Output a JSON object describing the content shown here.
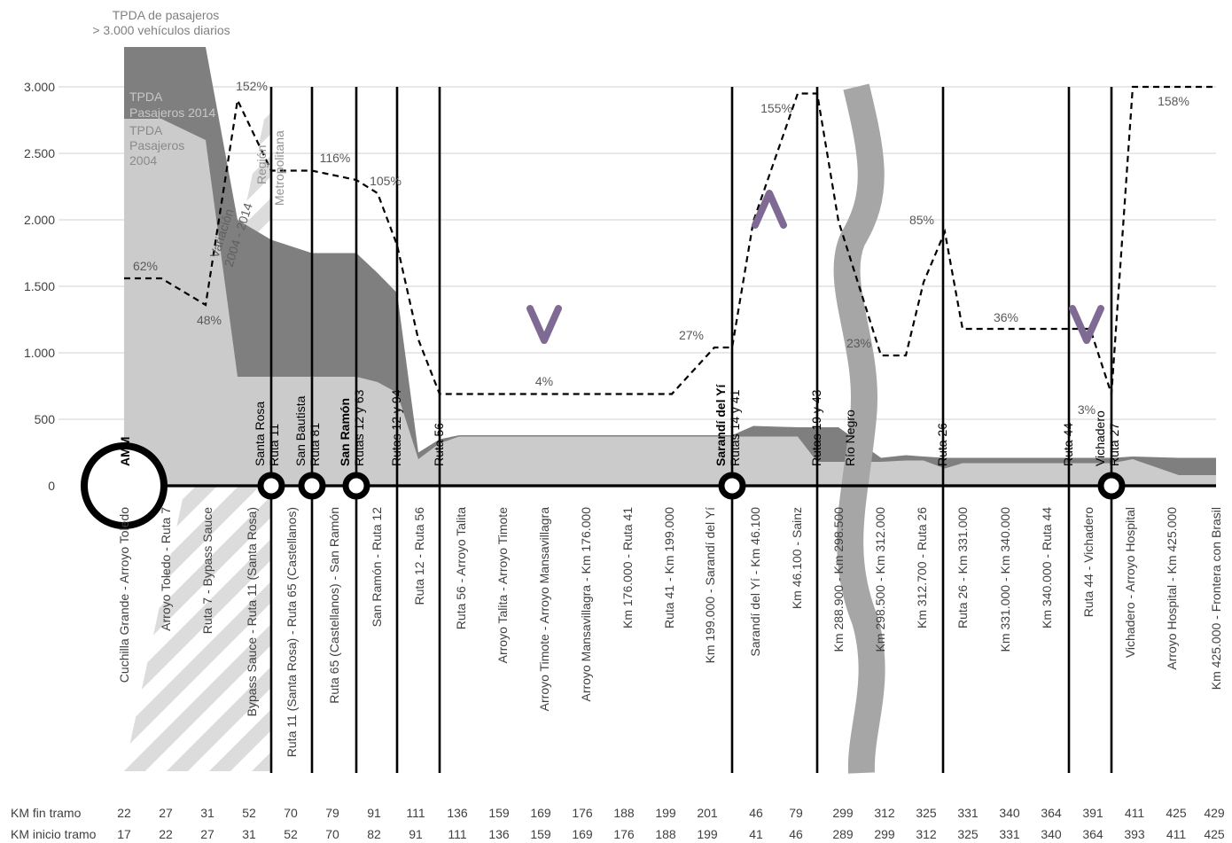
{
  "chart_data": {
    "type": "area",
    "y_axis": {
      "ticks": [
        0,
        500,
        1000,
        1500,
        2000,
        2500,
        3000
      ],
      "tick_labels": [
        "0",
        "500",
        "1.000",
        "1.500",
        "2.000",
        "2.500",
        "3.000"
      ],
      "ylim": [
        0,
        3300
      ],
      "grid": true
    },
    "top_note": [
      "TPDA de pasajeros",
      "> 3.000 vehículos diarios"
    ],
    "series": [
      {
        "name": "TPDA Pasajeros 2014",
        "label_lines": [
          "TPDA",
          "Pasajeros 2014"
        ],
        "color": "#7f7f7f",
        "values": [
          3300,
          3300,
          3300,
          2000,
          1850,
          1750,
          1750,
          1600,
          1450,
          250,
          350,
          380,
          380,
          380,
          380,
          380,
          380,
          450,
          440,
          440,
          440,
          210,
          230,
          220,
          210,
          210,
          210,
          210,
          210,
          220,
          210,
          210
        ]
      },
      {
        "name": "TPDA Pasajeros 2004",
        "label_lines": [
          "TPDA",
          "Pasajeros",
          "2004"
        ],
        "color": "#cbcbcb",
        "values": [
          2760,
          2760,
          2600,
          820,
          820,
          820,
          820,
          780,
          700,
          200,
          320,
          370,
          370,
          370,
          370,
          370,
          370,
          370,
          370,
          180,
          180,
          180,
          190,
          190,
          130,
          170,
          170,
          170,
          170,
          200,
          80,
          80
        ]
      }
    ],
    "variation": {
      "name": "Variación 2004 - 2014",
      "label_lines": [
        "Variación",
        "2004 - 2014"
      ],
      "values": [
        1560,
        1560,
        1360,
        2900,
        2370,
        2370,
        2300,
        2200,
        1810,
        1100,
        690,
        690,
        690,
        690,
        690,
        1040,
        1040,
        1990,
        2950,
        2950,
        1990,
        980,
        980,
        1530,
        1910,
        1180,
        1180,
        1180,
        690,
        3000,
        3000,
        3000
      ],
      "labels": [
        "62%",
        "48%",
        "152%",
        "116%",
        "105%",
        "4%",
        "27%",
        "155%",
        "23%",
        "85%",
        "36%",
        "3%",
        "158%"
      ]
    },
    "metro_region_label": [
      "Región",
      "Metropolitana"
    ],
    "section_labels": [
      "Cuchilla Grande - Arroyo Toledo",
      "Arroyo Toledo - Ruta 7",
      "Ruta 7 - Bypass Sauce",
      "Bypass Sauce - Ruta 11 (Santa Rosa)",
      "Ruta 11 (Santa Rosa) - Ruta 65 (Castellanos)",
      "Ruta 65 (Castellanos) - San Ramón",
      "San Ramón - Ruta 12",
      "Ruta 12 - Ruta 56",
      "Ruta 56 - Arroyo Talita",
      "Arroyo Talita - Arroyo Timote",
      "Arroyo Timote - Arroyo Mansavillagra",
      "Arroyo Mansavillagra - Km 176.000",
      "Km 176.000 - Ruta 41",
      "Ruta 41 - Km 199.000",
      "Km 199.000 - Sarandí del Yí",
      "Sarandí del Yí - Km 46.100",
      "Km 46.100 - Sainz",
      "Km 288.900 - Km 298.500",
      "Km 298.500 - Km 312.000",
      "Km 312.700 - Ruta 26",
      "Ruta 26 - Km 331.000",
      "Km 331.000 - Km 340.000",
      "Km 340.000 - Ruta 44",
      "Ruta 44 - Vichadero",
      "Vichadero - Arroyo Hospital",
      "Arroyo Hospital - Km 425.000",
      "Km 425.000 - Frontera con Brasil"
    ],
    "points_of_interest": [
      {
        "lines": [
          "AMM"
        ],
        "bold": 1
      },
      {
        "lines": [
          "Santa Rosa",
          "Ruta 11"
        ],
        "bold": 0
      },
      {
        "lines": [
          "San Bautista",
          "Ruta 81"
        ],
        "bold": 0
      },
      {
        "lines": [
          "San Ramón",
          "Rutas 12 y 63"
        ],
        "bold": 1
      },
      {
        "lines": [
          "Rutas 12 y 94"
        ],
        "bold": 0
      },
      {
        "lines": [
          "Ruta 56"
        ],
        "bold": 0
      },
      {
        "lines": [
          "Sarandí del Yí",
          "Rutas 14 y 41"
        ],
        "bold": 1
      },
      {
        "lines": [
          "Rutas 19 y 43"
        ],
        "bold": 0
      },
      {
        "lines": [
          "Río Negro"
        ],
        "bold": 0
      },
      {
        "lines": [
          "Ruta 26"
        ],
        "bold": 0
      },
      {
        "lines": [
          "Ruta 44"
        ],
        "bold": 0
      },
      {
        "lines": [
          "Vichadero",
          "Ruta 27"
        ],
        "bold": 0
      }
    ],
    "symbols": [
      "v",
      "^",
      "v"
    ],
    "km_table": {
      "rows": [
        {
          "label": "KM fin tramo",
          "values": [
            "22",
            "27",
            "31",
            "52",
            "70",
            "79",
            "91",
            "111",
            "136",
            "159",
            "169",
            "176",
            "188",
            "199",
            "201",
            "46",
            "79",
            "299",
            "312",
            "325",
            "331",
            "340",
            "364",
            "391",
            "411",
            "425",
            "429"
          ]
        },
        {
          "label": "KM inicio tramo",
          "values": [
            "17",
            "22",
            "27",
            "31",
            "52",
            "70",
            "82",
            "91",
            "111",
            "136",
            "159",
            "169",
            "176",
            "188",
            "199",
            "41",
            "46",
            "289",
            "299",
            "312",
            "325",
            "331",
            "340",
            "364",
            "393",
            "411",
            "425"
          ]
        }
      ]
    }
  },
  "colors": {
    "area_2014": "#7f7f7f",
    "area_2004": "#cbcbcb",
    "river": "#a6a6a6",
    "symbol": "#7f6a93",
    "grid": "#d9d9d9",
    "hatch": "#dcdcdc"
  }
}
